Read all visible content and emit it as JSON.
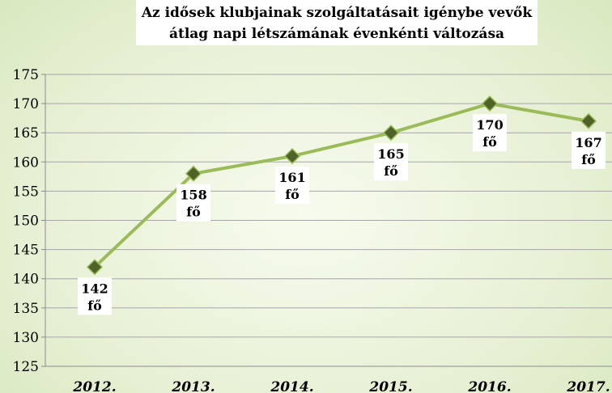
{
  "chart_data": {
    "type": "line",
    "title_lines": [
      "Az idősek klubjainak szolgáltatásait igénybe vevők",
      "átlag napi létszámának évenkénti változása"
    ],
    "categories": [
      "2012.",
      "2013.",
      "2014.",
      "2015.",
      "2016.",
      "2017."
    ],
    "series": [
      {
        "values": [
          142,
          158,
          161,
          165,
          170,
          167
        ],
        "data_labels": [
          "142 fő",
          "158 fő",
          "161 fő",
          "165 fő",
          "170 fő",
          "167 fő"
        ]
      }
    ],
    "unit_label": "fő",
    "ylim": [
      125,
      175
    ],
    "yticks": [
      125,
      130,
      135,
      140,
      145,
      150,
      155,
      160,
      165,
      170,
      175
    ],
    "grid": true,
    "legend": "none",
    "colors": {
      "line": "#9bbb59",
      "marker_fill": "#4f6228",
      "marker_stroke": "#9bbb59",
      "label_box": "#ffffff"
    }
  }
}
